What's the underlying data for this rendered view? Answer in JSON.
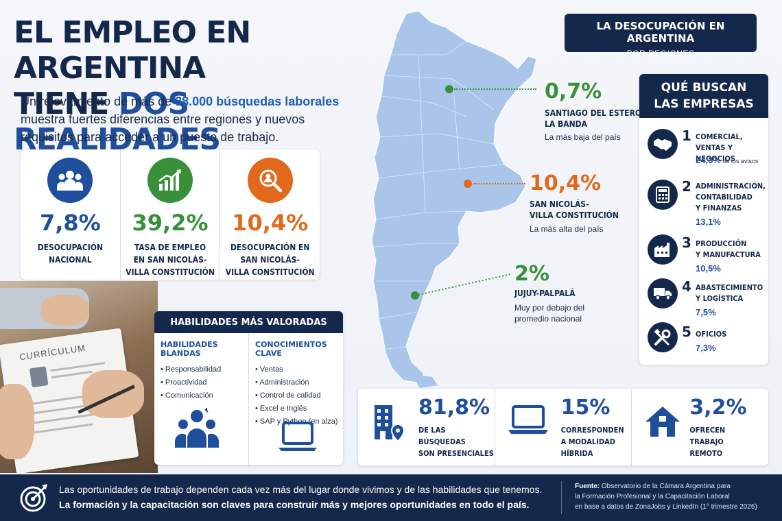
{
  "header": {
    "title_line1": "EL EMPLEO EN ARGENTINA",
    "title_line2_a": "TIENE ",
    "title_line2_b": "DOS REALIDADES",
    "intro_a": "Un relevamiento de más de ",
    "intro_highlight": "38.000 búsquedas laborales",
    "intro_b": " muestra fuertes diferencias entre regiones y nuevos requisitos para acceder a un puesto de trabajo."
  },
  "stats": [
    {
      "value": "7,8%",
      "label_1": "DESOCUPACIÓN",
      "label_2": "NACIONAL",
      "label_3": "",
      "color": "#1f4f9c",
      "icon": "people-group-icon"
    },
    {
      "value": "39,2%",
      "label_1": "TASA DE EMPLEO",
      "label_2": "EN SAN NICOLÁS-",
      "label_3": "VILLA CONSTITUCIÓN",
      "color": "#3a8f3a",
      "icon": "growth-chart-icon"
    },
    {
      "value": "10,4%",
      "label_1": "DESOCUPACIÓN EN",
      "label_2": "SAN NICOLÁS-",
      "label_3": "VILLA CONSTITUCIÓN",
      "color": "#e2681c",
      "icon": "search-person-icon"
    }
  ],
  "photo": {
    "paper_title": "CURRÍCULUM"
  },
  "skills": {
    "title": "HABILIDADES MÁS VALORADAS",
    "soft_title": "HABILIDADES BLANDAS",
    "soft": [
      "Responsabilidad",
      "Proactividad",
      "Comunicación"
    ],
    "hard_title": "CONOCIMIENTOS CLAVE",
    "hard": [
      "Ventas",
      "Administración",
      "Control de calidad",
      "Excel e Inglés",
      "SAP y Python (en alza)"
    ]
  },
  "region_header": {
    "title": "LA DESOCUPACIÓN EN ARGENTINA",
    "subtitle": "POR REGIONES"
  },
  "callouts": [
    {
      "value": "0,7%",
      "name_1": "SANTIAGO DEL ESTERO-",
      "name_2": "LA BANDA",
      "note_1": "La más baja del país",
      "note_2": "",
      "color": "#3a8f3a"
    },
    {
      "value": "10,4%",
      "name_1": "SAN NICOLÁS-",
      "name_2": "VILLA CONSTITUCIÓN",
      "note_1": "La más alta del país",
      "note_2": "",
      "color": "#e2681c"
    },
    {
      "value": "2%",
      "name_1": "JUJUY-PALPALÁ",
      "name_2": "",
      "note_1": "Muy por debajo del",
      "note_2": "promedio nacional",
      "color": "#3a8f3a"
    }
  ],
  "companies": {
    "title_1": "QUÉ BUSCAN",
    "title_2": "LAS EMPRESAS",
    "items": [
      {
        "num": "1",
        "name_1": "COMERCIAL,",
        "name_2": "VENTAS Y NEGOCIOS",
        "name_3": "",
        "pct": "24,3%",
        "pct_note": " de los avisos",
        "icon": "handshake-icon"
      },
      {
        "num": "2",
        "name_1": "ADMINISTRACIÓN,",
        "name_2": "CONTABILIDAD",
        "name_3": "Y FINANZAS",
        "pct": "13,1%",
        "pct_note": "",
        "icon": "calculator-icon"
      },
      {
        "num": "3",
        "name_1": "PRODUCCIÓN",
        "name_2": "Y MANUFACTURA",
        "name_3": "",
        "pct": "10,5%",
        "pct_note": "",
        "icon": "factory-icon"
      },
      {
        "num": "4",
        "name_1": "ABASTECIMIENTO",
        "name_2": "Y LOGÍSTICA",
        "name_3": "",
        "pct": "7,5%",
        "pct_note": "",
        "icon": "truck-icon"
      },
      {
        "num": "5",
        "name_1": "OFICIOS",
        "name_2": "",
        "name_3": "",
        "pct": "7,3%",
        "pct_note": "",
        "icon": "tools-icon"
      }
    ]
  },
  "bottom_stats": [
    {
      "value": "81,8%",
      "label_1": "DE LAS BÚSQUEDAS",
      "label_2": "SON PRESENCIALES",
      "label_3": "",
      "icon": "office-building-icon"
    },
    {
      "value": "15%",
      "label_1": "CORRESPONDEN",
      "label_2": "A MODALIDAD",
      "label_3": "HÍBRIDA",
      "icon": "laptop-icon"
    },
    {
      "value": "3,2%",
      "label_1": "OFRECEN",
      "label_2": "TRABAJO",
      "label_3": "REMOTO",
      "icon": "home-icon"
    }
  ],
  "footer": {
    "message_1": "Las oportunidades de trabajo dependen cada vez más del lugar donde vivimos y de las habilidades que tenemos.",
    "message_2": "La formación y la capacitación son claves para construir más y mejores oportunidades en todo el país.",
    "source_label": "Fuente:",
    "source_1": " Observatorio de la Cámara Argentina para",
    "source_2": "la Formación Profesional y la Capacitación Laboral",
    "source_3": "en base a datos de ZonaJobs y LinkedIn (1° trimestre 2026)"
  },
  "colors": {
    "navy": "#14284b",
    "blue": "#1f4f9c",
    "green": "#3a8f3a",
    "orange": "#e2681c",
    "map": "#a9c6ea"
  }
}
